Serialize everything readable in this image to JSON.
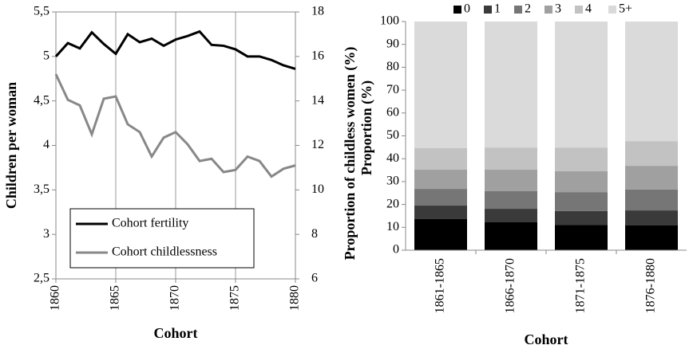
{
  "chart_data": [
    {
      "type": "line",
      "x": [
        1860,
        1861,
        1862,
        1863,
        1864,
        1865,
        1866,
        1867,
        1868,
        1869,
        1870,
        1871,
        1872,
        1873,
        1874,
        1875,
        1876,
        1877,
        1878,
        1879,
        1880
      ],
      "xlim": [
        1860,
        1880
      ],
      "xticks": [
        1860,
        1865,
        1870,
        1875,
        1880
      ],
      "ylim": [
        2.5,
        5.5
      ],
      "yticks": [
        {
          "value": 2.5,
          "label": "2,5"
        },
        3,
        {
          "value": 3.5,
          "label": "3,5"
        },
        4,
        {
          "value": 4.5,
          "label": "4,5"
        },
        5,
        {
          "value": 5.5,
          "label": "5,5"
        }
      ],
      "y2lim": [
        6,
        18
      ],
      "y2ticks": [
        6,
        8,
        10,
        12,
        14,
        16,
        18
      ],
      "xlabel": "Cohort",
      "ylabel": "Children per woman",
      "y2label": "Proportion of childless women (%)",
      "grid": "x",
      "legend": "lower left",
      "series": [
        {
          "name": "Cohort fertility",
          "color": "#000000",
          "values": [
            5.0,
            5.15,
            5.09,
            5.27,
            5.14,
            5.03,
            5.25,
            5.16,
            5.2,
            5.12,
            5.19,
            5.23,
            5.28,
            5.13,
            5.12,
            5.08,
            5.0,
            5.0,
            4.96,
            4.9,
            4.86
          ]
        },
        {
          "name": "Cohort childlessness",
          "color": "#888888",
          "axis": "y2",
          "values": [
            15.2,
            14.05,
            13.8,
            12.5,
            14.1,
            14.2,
            12.95,
            12.6,
            11.5,
            12.35,
            12.6,
            12.05,
            11.3,
            11.4,
            10.8,
            10.9,
            11.5,
            11.3,
            10.6,
            10.95,
            11.1
          ]
        }
      ]
    },
    {
      "type": "stacked_bar",
      "categories": [
        "1861-1865",
        "1866-1870",
        "1871-1875",
        "1876-1880"
      ],
      "ylim": [
        0,
        100
      ],
      "yticks": [
        0,
        10,
        20,
        30,
        40,
        50,
        60,
        70,
        80,
        90,
        100
      ],
      "xlabel": "Cohort",
      "ylabel": "Proportion (%)",
      "legend": "top",
      "series": [
        {
          "name": "0",
          "color": "#000000",
          "values": [
            13.6,
            12.2,
            11.1,
            10.8
          ]
        },
        {
          "name": "1",
          "color": "#3a3a3a",
          "values": [
            5.9,
            5.9,
            6.0,
            6.6
          ]
        },
        {
          "name": "2",
          "color": "#767676",
          "values": [
            7.3,
            7.7,
            8.3,
            9.1
          ]
        },
        {
          "name": "3",
          "color": "#a0a0a0",
          "values": [
            8.4,
            9.4,
            9.1,
            10.4
          ]
        },
        {
          "name": "4",
          "color": "#c2c2c2",
          "values": [
            9.4,
            9.7,
            10.4,
            10.8
          ]
        },
        {
          "name": "5+",
          "color": "#dadada",
          "values": [
            55.4,
            55.1,
            55.1,
            52.3
          ]
        }
      ]
    }
  ]
}
